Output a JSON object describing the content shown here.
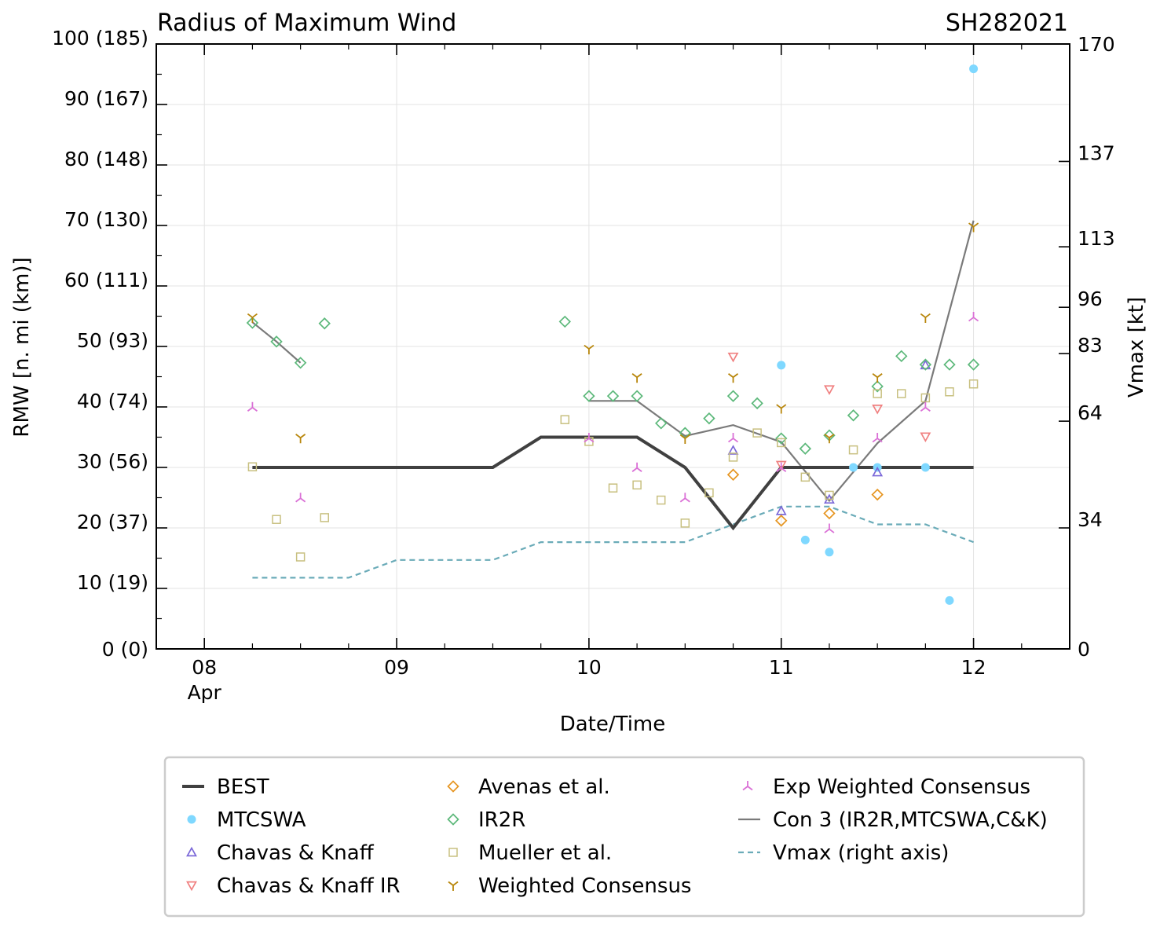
{
  "chart_data": {
    "type": "line",
    "title": "Radius of Maximum Wind",
    "storm_id": "SH282021",
    "xlabel": "Date/Time",
    "ylabel": "RMW [n. mi (km)]",
    "y2label": "Vmax [kt]",
    "x_unit": "days since 08 Apr 00Z",
    "xlim": [
      -0.25,
      4.5
    ],
    "ylim": [
      0,
      100
    ],
    "y2lim": [
      0,
      170
    ],
    "x_ticks": [
      {
        "x": 0,
        "label": "08",
        "sublabel": "Apr"
      },
      {
        "x": 1,
        "label": "09",
        "sublabel": ""
      },
      {
        "x": 2,
        "label": "10",
        "sublabel": ""
      },
      {
        "x": 3,
        "label": "11",
        "sublabel": ""
      },
      {
        "x": 4,
        "label": "12",
        "sublabel": ""
      }
    ],
    "y_ticks": [
      {
        "v": 0,
        "label": "0 (0)"
      },
      {
        "v": 10,
        "label": "10 (19)"
      },
      {
        "v": 20,
        "label": "20 (37)"
      },
      {
        "v": 30,
        "label": "30 (56)"
      },
      {
        "v": 40,
        "label": "40 (74)"
      },
      {
        "v": 50,
        "label": "50 (93)"
      },
      {
        "v": 60,
        "label": "60 (111)"
      },
      {
        "v": 70,
        "label": "70 (130)"
      },
      {
        "v": 80,
        "label": "80 (148)"
      },
      {
        "v": 90,
        "label": "90 (167)"
      },
      {
        "v": 100,
        "label": "100 (185)"
      }
    ],
    "y2_ticks": [
      {
        "v": 0,
        "label": "0"
      },
      {
        "v": 34,
        "label": "34"
      },
      {
        "v": 64,
        "label": "64"
      },
      {
        "v": 83,
        "label": "83"
      },
      {
        "v": 96,
        "label": "96"
      },
      {
        "v": 113,
        "label": "113"
      },
      {
        "v": 137,
        "label": "137"
      },
      {
        "v": 170,
        "label": "170"
      }
    ],
    "series": [
      {
        "name": "BEST",
        "kind": "line",
        "color": "#404040",
        "dash": "",
        "width": 4,
        "axis": "left",
        "points": [
          [
            0.25,
            30
          ],
          [
            0.5,
            30
          ],
          [
            0.75,
            30
          ],
          [
            1.0,
            30
          ],
          [
            1.25,
            30
          ],
          [
            1.5,
            30
          ],
          [
            1.75,
            35
          ],
          [
            2.0,
            35
          ],
          [
            2.25,
            35
          ],
          [
            2.5,
            30
          ],
          [
            2.75,
            20
          ],
          [
            3.0,
            30
          ],
          [
            3.25,
            30
          ],
          [
            3.5,
            30
          ],
          [
            3.75,
            30
          ],
          [
            4.0,
            30
          ]
        ]
      },
      {
        "name": "MTCSWA",
        "kind": "marker",
        "marker": "circle",
        "color": "#7fd8ff",
        "axis": "left",
        "points": [
          [
            3.0,
            46.9
          ],
          [
            3.125,
            18
          ],
          [
            3.25,
            16
          ],
          [
            3.375,
            30
          ],
          [
            3.5,
            30
          ],
          [
            3.75,
            30
          ],
          [
            3.875,
            8
          ],
          [
            4.0,
            95.9
          ]
        ]
      },
      {
        "name": "Chavas & Knaff",
        "kind": "marker",
        "marker": "tri-up",
        "color": "#7b68d8",
        "axis": "left",
        "points": [
          [
            2.75,
            32.8
          ],
          [
            3.0,
            22.8
          ],
          [
            3.25,
            24.7
          ],
          [
            3.5,
            29.2
          ],
          [
            3.75,
            46.9
          ]
        ]
      },
      {
        "name": "Chavas & Knaff IR",
        "kind": "marker",
        "marker": "tri-down",
        "color": "#f08080",
        "axis": "left",
        "points": [
          [
            2.75,
            48.3
          ],
          [
            3.0,
            30.4
          ],
          [
            3.25,
            42.9
          ],
          [
            3.5,
            39.7
          ],
          [
            3.75,
            35.1
          ]
        ]
      },
      {
        "name": "Avenas et al.",
        "kind": "marker",
        "marker": "diamond",
        "color": "#e69520",
        "axis": "left",
        "points": [
          [
            2.75,
            28.8
          ],
          [
            3.0,
            21.2
          ],
          [
            3.25,
            22.4
          ],
          [
            3.5,
            25.5
          ]
        ]
      },
      {
        "name": "IR2R",
        "kind": "marker",
        "marker": "diamond",
        "color": "#5cb87a",
        "axis": "left",
        "points": [
          [
            0.25,
            53.9
          ],
          [
            0.375,
            50.8
          ],
          [
            0.5,
            47.3
          ],
          [
            0.625,
            53.8
          ],
          [
            1.875,
            54.1
          ],
          [
            2.0,
            41.8
          ],
          [
            2.125,
            41.8
          ],
          [
            2.25,
            41.8
          ],
          [
            2.375,
            37.3
          ],
          [
            2.5,
            35.7
          ],
          [
            2.625,
            38.1
          ],
          [
            2.75,
            41.8
          ],
          [
            2.875,
            40.6
          ],
          [
            3.0,
            34.8
          ],
          [
            3.125,
            33.1
          ],
          [
            3.25,
            35.3
          ],
          [
            3.375,
            38.6
          ],
          [
            3.5,
            43.4
          ],
          [
            3.625,
            48.4
          ],
          [
            3.75,
            47.0
          ],
          [
            3.875,
            47.0
          ],
          [
            4.0,
            47.0
          ]
        ]
      },
      {
        "name": "Mueller et al.",
        "kind": "marker",
        "marker": "square",
        "color": "#c8c080",
        "axis": "left",
        "points": [
          [
            0.25,
            30.1
          ],
          [
            0.375,
            21.4
          ],
          [
            0.5,
            15.2
          ],
          [
            0.625,
            21.7
          ],
          [
            1.875,
            37.9
          ],
          [
            2.0,
            34.3
          ],
          [
            2.125,
            26.6
          ],
          [
            2.25,
            27.1
          ],
          [
            2.375,
            24.6
          ],
          [
            2.5,
            20.8
          ],
          [
            2.625,
            25.8
          ],
          [
            2.75,
            31.7
          ],
          [
            2.875,
            35.7
          ],
          [
            3.0,
            34.1
          ],
          [
            3.125,
            28.4
          ],
          [
            3.25,
            25.4
          ],
          [
            3.375,
            32.9
          ],
          [
            3.5,
            42.2
          ],
          [
            3.625,
            42.2
          ],
          [
            3.75,
            41.5
          ],
          [
            3.875,
            42.5
          ],
          [
            4.0,
            43.8
          ]
        ]
      },
      {
        "name": "Weighted Consensus",
        "kind": "marker",
        "marker": "tri-y",
        "color": "#b8860b",
        "axis": "left",
        "points": [
          [
            0.25,
            54.8
          ],
          [
            0.5,
            34.9
          ],
          [
            2.0,
            49.6
          ],
          [
            2.25,
            44.9
          ],
          [
            2.5,
            34.8
          ],
          [
            2.75,
            44.9
          ],
          [
            3.0,
            39.8
          ],
          [
            3.25,
            34.9
          ],
          [
            3.5,
            44.9
          ],
          [
            3.75,
            54.8
          ],
          [
            4.0,
            69.8
          ]
        ]
      },
      {
        "name": "Exp Weighted Consensus",
        "kind": "marker",
        "marker": "tri-inv",
        "color": "#da70d6",
        "axis": "left",
        "points": [
          [
            0.25,
            39.9
          ],
          [
            0.5,
            24.9
          ],
          [
            2.0,
            34.8
          ],
          [
            2.25,
            29.9
          ],
          [
            2.5,
            24.9
          ],
          [
            2.75,
            34.8
          ],
          [
            3.0,
            29.9
          ],
          [
            3.25,
            19.8
          ],
          [
            3.5,
            34.8
          ],
          [
            3.75,
            39.9
          ],
          [
            4.0,
            54.8
          ]
        ]
      },
      {
        "name": "Con 3 (IR2R,MTCSWA,C&K)",
        "kind": "line",
        "color": "#7a7a7a",
        "dash": "",
        "width": 2.2,
        "axis": "left",
        "segments": [
          [
            [
              0.25,
              54.0
            ],
            [
              0.375,
              50.8
            ],
            [
              0.5,
              47.3
            ]
          ],
          [
            [
              2.0,
              41.0
            ],
            [
              2.125,
              41.0
            ],
            [
              2.25,
              41.0
            ],
            [
              2.5,
              35.2
            ],
            [
              2.75,
              37.0
            ],
            [
              3.0,
              34.2
            ],
            [
              3.25,
              24.5
            ],
            [
              3.5,
              34.0
            ],
            [
              3.75,
              41.0
            ],
            [
              4.0,
              70.8
            ]
          ]
        ]
      },
      {
        "name": "Vmax (right axis)",
        "kind": "line",
        "color": "#6aabb8",
        "dash": "7,5",
        "width": 2.2,
        "axis": "right",
        "points": [
          [
            0.25,
            20
          ],
          [
            0.5,
            20
          ],
          [
            0.75,
            20
          ],
          [
            1.0,
            25
          ],
          [
            1.25,
            25
          ],
          [
            1.5,
            25
          ],
          [
            1.75,
            30
          ],
          [
            2.0,
            30
          ],
          [
            2.25,
            30
          ],
          [
            2.5,
            30
          ],
          [
            2.75,
            35
          ],
          [
            3.0,
            40
          ],
          [
            3.25,
            40
          ],
          [
            3.5,
            35
          ],
          [
            3.75,
            35
          ],
          [
            4.0,
            30
          ]
        ]
      }
    ],
    "legend": {
      "placement": "bottom",
      "columns": [
        [
          "BEST",
          "MTCSWA",
          "Chavas & Knaff",
          "Chavas & Knaff IR"
        ],
        [
          "Avenas et al.",
          "IR2R",
          "Mueller et al.",
          "Weighted Consensus"
        ],
        [
          "Exp Weighted Consensus",
          "Con 3 (IR2R,MTCSWA,C&K)",
          "Vmax (right axis)"
        ]
      ]
    }
  }
}
